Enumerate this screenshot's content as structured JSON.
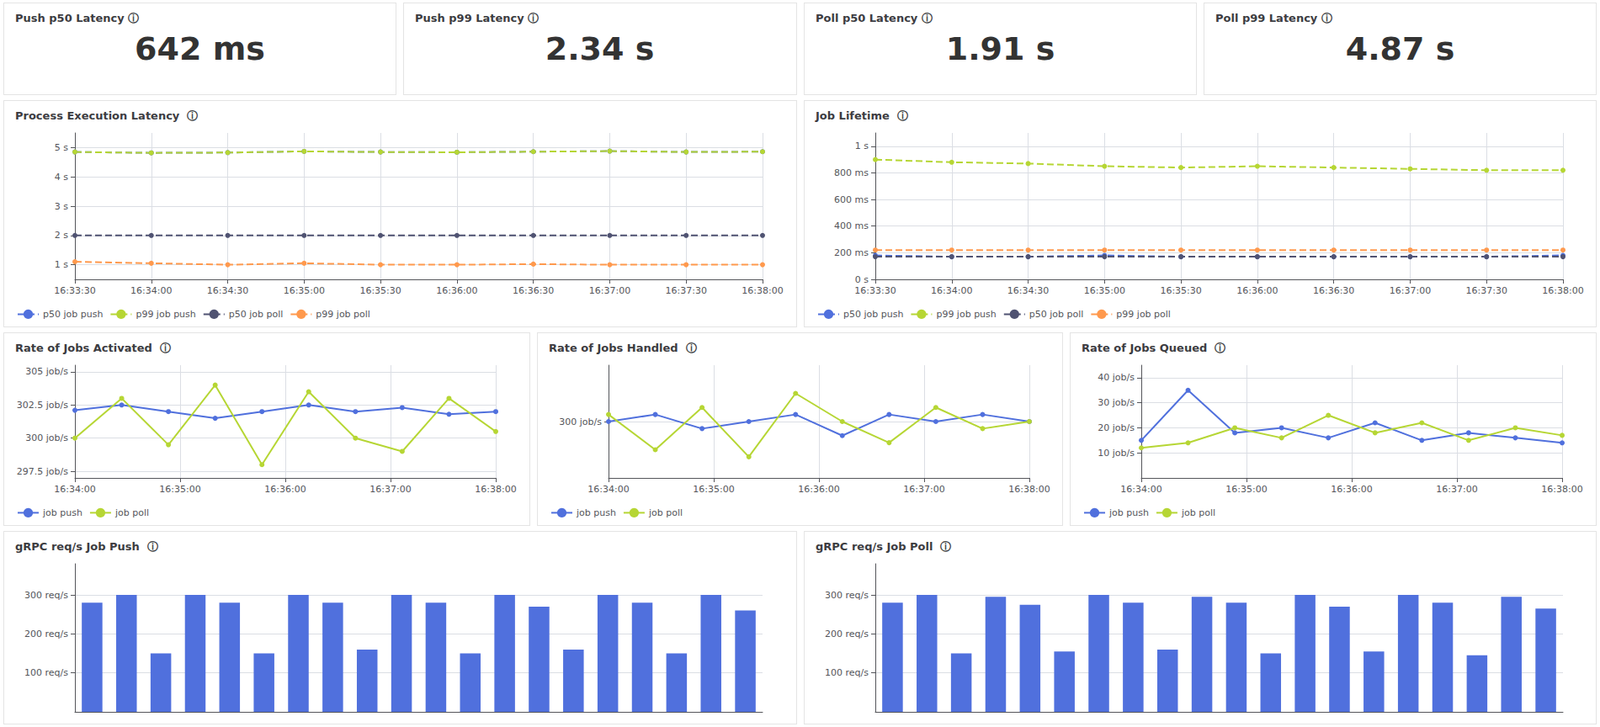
{
  "chart_data": [
    {
      "type": "stat",
      "title": "Push p50 Latency ⓘ",
      "values": [
        642
      ],
      "value_labels": [
        "642 ms"
      ]
    },
    {
      "type": "stat",
      "title": "Push p99 Latency ⓘ",
      "values": [
        2.34
      ],
      "value_labels": [
        "2.34 s"
      ]
    },
    {
      "type": "stat",
      "title": "Poll p50 Latency ⓘ",
      "values": [
        1.91
      ],
      "value_labels": [
        "1.91 s"
      ]
    },
    {
      "type": "stat",
      "title": "Poll p99 Latency ⓘ",
      "values": [
        4.87
      ],
      "value_labels": [
        "4.87 s"
      ]
    },
    {
      "type": "line",
      "title": "Process Execution Latency  ⓘ",
      "categories": [
        "16:33:30",
        "16:34:00",
        "16:34:30",
        "16:35:00",
        "16:35:30",
        "16:36:00",
        "16:36:30",
        "16:37:00",
        "16:37:30",
        "16:38:00"
      ],
      "series": [
        {
          "name": "p50 job push",
          "values": [
            4.85,
            4.82,
            4.83,
            4.87,
            4.85,
            4.84,
            4.86,
            4.88,
            4.85,
            4.86
          ]
        },
        {
          "name": "p99 job push",
          "values": [
            4.85,
            4.82,
            4.83,
            4.87,
            4.85,
            4.84,
            4.86,
            4.88,
            4.85,
            4.86
          ]
        },
        {
          "name": "p50 job poll",
          "values": [
            2.0,
            2.0,
            2.0,
            2.0,
            2.0,
            2.0,
            2.0,
            2.0,
            2.0,
            2.0
          ]
        },
        {
          "name": "p99 job poll",
          "values": [
            1.1,
            1.05,
            1.0,
            1.05,
            1.0,
            1.0,
            1.02,
            1.0,
            1.0,
            1.0
          ]
        }
      ],
      "ylim": [
        0.5,
        5.5
      ],
      "yticks": [
        {
          "value": 1,
          "label": "1 s"
        },
        {
          "value": 2,
          "label": "2 s"
        },
        {
          "value": 3,
          "label": "3 s"
        },
        {
          "value": 4,
          "label": "4 s"
        },
        {
          "value": 5,
          "label": "5 s"
        }
      ],
      "grid": true,
      "legend": "lower left",
      "marker": "circle",
      "line_style": "dashed"
    },
    {
      "type": "line",
      "title": "Job Lifetime  ⓘ",
      "categories": [
        "16:33:30",
        "16:34:00",
        "16:34:30",
        "16:35:00",
        "16:35:30",
        "16:36:00",
        "16:36:30",
        "16:37:00",
        "16:37:30",
        "16:38:00"
      ],
      "series": [
        {
          "name": "p50 job push",
          "values": [
            0.18,
            0.17,
            0.17,
            0.18,
            0.17,
            0.17,
            0.17,
            0.17,
            0.17,
            0.18
          ]
        },
        {
          "name": "p99 job push",
          "values": [
            0.9,
            0.88,
            0.87,
            0.85,
            0.84,
            0.85,
            0.84,
            0.83,
            0.82,
            0.82
          ]
        },
        {
          "name": "p50 job poll",
          "values": [
            0.17,
            0.17,
            0.17,
            0.17,
            0.17,
            0.17,
            0.17,
            0.17,
            0.17,
            0.17
          ]
        },
        {
          "name": "p99 job poll",
          "values": [
            0.22,
            0.22,
            0.22,
            0.22,
            0.22,
            0.22,
            0.22,
            0.22,
            0.22,
            0.22
          ]
        }
      ],
      "ylim": [
        0,
        1.1
      ],
      "yticks": [
        {
          "value": 0,
          "label": "0 s"
        },
        {
          "value": 0.2,
          "label": "200 ms"
        },
        {
          "value": 0.4,
          "label": "400 ms"
        },
        {
          "value": 0.6,
          "label": "600 ms"
        },
        {
          "value": 0.8,
          "label": "800 ms"
        },
        {
          "value": 1.0,
          "label": "1 s"
        }
      ],
      "grid": true,
      "legend": "lower left",
      "marker": "circle",
      "line_style": "dashed"
    },
    {
      "type": "line",
      "title": "Rate of Jobs Activated  ⓘ",
      "x": [
        0,
        1,
        2,
        3,
        4,
        5,
        6,
        7,
        8,
        9
      ],
      "series": [
        {
          "name": "job push",
          "values": [
            302.1,
            302.5,
            302.0,
            301.5,
            302.0,
            302.5,
            302.0,
            302.3,
            301.8,
            302.0
          ]
        },
        {
          "name": "job poll",
          "values": [
            300.0,
            303.0,
            299.5,
            304.0,
            298.0,
            303.5,
            300.0,
            299.0,
            303.0,
            300.5
          ]
        }
      ],
      "xlim": [
        0,
        9
      ],
      "xticks": [
        {
          "value": 0,
          "label": "16:34:00"
        },
        {
          "value": 2.25,
          "label": "16:35:00"
        },
        {
          "value": 4.5,
          "label": "16:36:00"
        },
        {
          "value": 6.75,
          "label": "16:37:00"
        },
        {
          "value": 9,
          "label": "16:38:00"
        }
      ],
      "ylim": [
        297,
        305.5
      ],
      "yticks": [
        {
          "value": 297.5,
          "label": "297.5 job/s"
        },
        {
          "value": 300,
          "label": "300 job/s"
        },
        {
          "value": 302.5,
          "label": "302.5 job/s"
        },
        {
          "value": 305,
          "label": "305 job/s"
        }
      ],
      "grid": true,
      "legend": "lower left",
      "marker": "circle",
      "line_style": "solid"
    },
    {
      "type": "line",
      "title": "Rate of Jobs Handled  ⓘ",
      "x": [
        0,
        1,
        2,
        3,
        4,
        5,
        6,
        7,
        8,
        9
      ],
      "series": [
        {
          "name": "job push",
          "values": [
            300.0,
            300.5,
            299.5,
            300.0,
            300.5,
            299.0,
            300.5,
            300.0,
            300.5,
            300.0
          ]
        },
        {
          "name": "job poll",
          "values": [
            300.5,
            298.0,
            301.0,
            297.5,
            302.0,
            300.0,
            298.5,
            301.0,
            299.5,
            300.0
          ]
        }
      ],
      "xlim": [
        0,
        9
      ],
      "xticks": [
        {
          "value": 0,
          "label": "16:34:00"
        },
        {
          "value": 2.25,
          "label": "16:35:00"
        },
        {
          "value": 4.5,
          "label": "16:36:00"
        },
        {
          "value": 6.75,
          "label": "16:37:00"
        },
        {
          "value": 9,
          "label": "16:38:00"
        }
      ],
      "ylim": [
        296,
        304
      ],
      "yticks": [
        {
          "value": 300,
          "label": "300 job/s"
        }
      ],
      "grid": true,
      "legend": "lower left",
      "marker": "circle",
      "line_style": "solid"
    },
    {
      "type": "line",
      "title": "Rate of Jobs Queued  ⓘ",
      "x": [
        0,
        1,
        2,
        3,
        4,
        5,
        6,
        7,
        8,
        9
      ],
      "series": [
        {
          "name": "job push",
          "values": [
            15.0,
            35.0,
            18.0,
            20.0,
            16.0,
            22.0,
            15.0,
            18.0,
            16.0,
            14.0
          ]
        },
        {
          "name": "job poll",
          "values": [
            12.0,
            14.0,
            20.0,
            16.0,
            25.0,
            18.0,
            22.0,
            15.0,
            20.0,
            17.0
          ]
        }
      ],
      "xlim": [
        0,
        9
      ],
      "xticks": [
        {
          "value": 0,
          "label": "16:34:00"
        },
        {
          "value": 2.25,
          "label": "16:35:00"
        },
        {
          "value": 4.5,
          "label": "16:36:00"
        },
        {
          "value": 6.75,
          "label": "16:37:00"
        },
        {
          "value": 9,
          "label": "16:38:00"
        }
      ],
      "ylim": [
        0,
        45
      ],
      "yticks": [
        {
          "value": 10,
          "label": "10 job/s"
        },
        {
          "value": 20,
          "label": "20 job/s"
        },
        {
          "value": 30,
          "label": "30 job/s"
        },
        {
          "value": 40,
          "label": "40 job/s"
        }
      ],
      "grid": true,
      "legend": "lower left",
      "marker": "circle",
      "line_style": "solid"
    },
    {
      "type": "bar",
      "title": "gRPC req/s Job Push  ⓘ",
      "x": [
        0,
        1,
        2,
        3,
        4,
        5,
        6,
        7,
        8,
        9,
        10,
        11,
        12,
        13,
        14,
        15,
        16,
        17,
        18,
        19
      ],
      "values": [
        280,
        300,
        150,
        300,
        280,
        150,
        300,
        280,
        160,
        300,
        280,
        150,
        300,
        270,
        160,
        300,
        280,
        150,
        300,
        260
      ],
      "ylim": [
        0,
        380
      ],
      "yticks": [
        {
          "value": 100,
          "label": "100 req/s"
        },
        {
          "value": 200,
          "label": "200 req/s"
        },
        {
          "value": 300,
          "label": "300 req/s"
        }
      ],
      "grid": "y",
      "tick_labels": "y"
    },
    {
      "type": "bar",
      "title": "gRPC req/s Job Poll  ⓘ",
      "x": [
        0,
        1,
        2,
        3,
        4,
        5,
        6,
        7,
        8,
        9,
        10,
        11,
        12,
        13,
        14,
        15,
        16,
        17,
        18,
        19
      ],
      "values": [
        280,
        300,
        150,
        295,
        275,
        155,
        300,
        280,
        160,
        295,
        280,
        150,
        300,
        270,
        155,
        300,
        280,
        145,
        295,
        265
      ],
      "ylim": [
        0,
        380
      ],
      "yticks": [
        {
          "value": 100,
          "label": "100 req/s"
        },
        {
          "value": 200,
          "label": "200 req/s"
        },
        {
          "value": 300,
          "label": "300 req/s"
        }
      ],
      "grid": "y",
      "tick_labels": "y"
    }
  ]
}
